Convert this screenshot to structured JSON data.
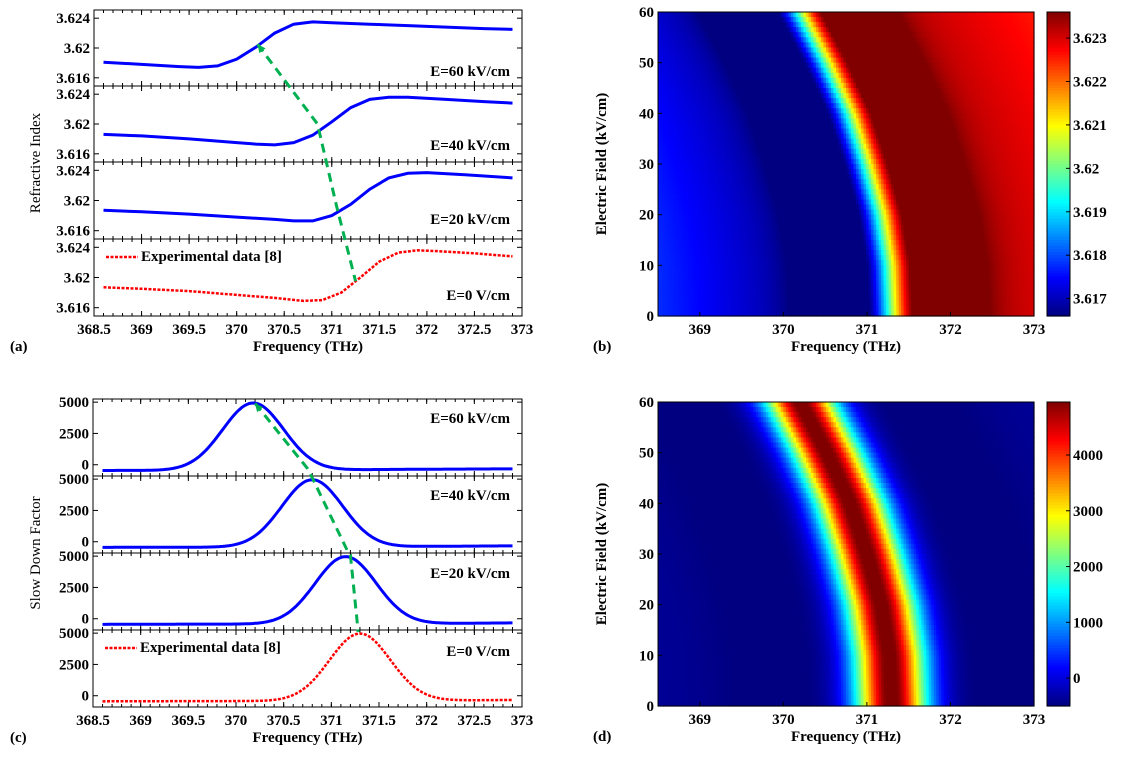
{
  "chart_data": [
    {
      "id": "a",
      "panel_label": "(a)",
      "type": "line",
      "xlabel": "Frequency (THz)",
      "ylabel": "Refractive Index",
      "xlim": [
        368.5,
        373
      ],
      "xticks": [
        "368.5",
        "369",
        "369.5",
        "370",
        "370.5",
        "371",
        "371.5",
        "372",
        "372.5",
        "373"
      ],
      "ylim": [
        3.6149,
        3.6251
      ],
      "yticks": [
        "3.616",
        "3.62",
        "3.624"
      ],
      "legend": {
        "label": "Experimental data [8]",
        "placement": "top-left of bottom subplot"
      },
      "subplots": [
        {
          "annotation": "E=60 kV/cm",
          "field_kV_cm": 60,
          "style": "solid",
          "color": "#0000ff",
          "x": [
            368.6,
            369.0,
            369.4,
            369.6,
            369.8,
            370.0,
            370.2,
            370.4,
            370.6,
            370.8,
            371.0,
            371.4,
            371.8,
            372.2,
            372.6,
            372.9
          ],
          "y": [
            3.6181,
            3.6178,
            3.6175,
            3.6174,
            3.6176,
            3.6185,
            3.6201,
            3.622,
            3.6232,
            3.6235,
            3.6234,
            3.6232,
            3.623,
            3.6228,
            3.6226,
            3.6225
          ]
        },
        {
          "annotation": "E=40 kV/cm",
          "field_kV_cm": 40,
          "style": "solid",
          "color": "#0000ff",
          "x": [
            368.6,
            369.0,
            369.5,
            370.0,
            370.2,
            370.4,
            370.6,
            370.8,
            371.0,
            371.2,
            371.4,
            371.6,
            371.8,
            372.2,
            372.6,
            372.9
          ],
          "y": [
            3.6186,
            3.6184,
            3.618,
            3.6175,
            3.6173,
            3.6172,
            3.6175,
            3.6185,
            3.6203,
            3.6222,
            3.6233,
            3.6236,
            3.6236,
            3.6233,
            3.623,
            3.6228
          ]
        },
        {
          "annotation": "E=20 kV/cm",
          "field_kV_cm": 20,
          "style": "solid",
          "color": "#0000ff",
          "x": [
            368.6,
            369.0,
            369.5,
            370.0,
            370.4,
            370.6,
            370.8,
            371.0,
            371.2,
            371.4,
            371.6,
            371.8,
            372.0,
            372.4,
            372.9
          ],
          "y": [
            3.6187,
            3.6185,
            3.6182,
            3.6178,
            3.6175,
            3.6173,
            3.6173,
            3.618,
            3.6195,
            3.6215,
            3.623,
            3.6236,
            3.6237,
            3.6234,
            3.623
          ]
        },
        {
          "annotation": "E=0 V/cm",
          "field_kV_cm": 0,
          "style": "dotted",
          "color": "#ff0000",
          "legend": true,
          "x": [
            368.6,
            369.0,
            369.5,
            370.0,
            370.4,
            370.7,
            370.9,
            371.1,
            371.3,
            371.5,
            371.7,
            371.9,
            372.1,
            372.5,
            372.9
          ],
          "y": [
            3.6187,
            3.6185,
            3.6182,
            3.6177,
            3.6173,
            3.6169,
            3.617,
            3.618,
            3.62,
            3.6221,
            3.6233,
            3.6236,
            3.6235,
            3.6232,
            3.6228
          ]
        }
      ],
      "trend_line": {
        "style": "dashed",
        "color": "#00b050",
        "points": [
          {
            "subplot": 0,
            "x": 370.22,
            "y": 3.6205
          },
          {
            "subplot": 1,
            "x": 370.85,
            "y": 3.62
          },
          {
            "subplot": 2,
            "x": 371.05,
            "y": 3.6193
          },
          {
            "subplot": 3,
            "x": 371.25,
            "y": 3.6195
          }
        ],
        "arrow_at": "E=60 kV/cm"
      }
    },
    {
      "id": "b",
      "panel_label": "(b)",
      "type": "heatmap",
      "xlabel": "Frequency (THz)",
      "ylabel": "Electric Field (kV/cm)",
      "xlim": [
        368.5,
        373
      ],
      "xticks": [
        "369",
        "370",
        "371",
        "372",
        "373"
      ],
      "ylim": [
        0,
        60
      ],
      "yticks": [
        "0",
        "10",
        "20",
        "30",
        "40",
        "50",
        "60"
      ],
      "colormap": "jet",
      "quantity": "refractive index",
      "clim": [
        3.6166,
        3.6236
      ],
      "colorbar_ticks": [
        "3.617",
        "3.618",
        "3.619",
        "3.62",
        "3.621",
        "3.622",
        "3.623"
      ],
      "resonance_center_THz_by_field": {
        "fields": [
          0,
          10,
          20,
          30,
          40,
          50,
          60
        ],
        "centers": [
          371.3,
          371.27,
          371.17,
          371.0,
          370.8,
          370.52,
          370.2
        ]
      }
    },
    {
      "id": "c",
      "panel_label": "(c)",
      "type": "line",
      "xlabel": "Frequency (THz)",
      "ylabel": "Slow Down Factor",
      "xlim": [
        368.5,
        373
      ],
      "xticks": [
        "368.5",
        "369",
        "369.5",
        "370",
        "370.5",
        "371",
        "371.5",
        "372",
        "372.5",
        "373"
      ],
      "ylim": [
        -900,
        5250
      ],
      "yticks": [
        "0",
        "2500",
        "5000"
      ],
      "legend": {
        "label": "Experimental data [8]",
        "placement": "top-left of bottom subplot"
      },
      "subplots": [
        {
          "annotation": "E=60 kV/cm",
          "field_kV_cm": 60,
          "style": "solid",
          "color": "#0000ff",
          "peak_x": 370.18,
          "peak_y": 4950,
          "width": 0.32,
          "baseline": -450
        },
        {
          "annotation": "E=40 kV/cm",
          "field_kV_cm": 40,
          "style": "solid",
          "color": "#0000ff",
          "peak_x": 370.8,
          "peak_y": 4950,
          "width": 0.32,
          "baseline": -450
        },
        {
          "annotation": "E=20 kV/cm",
          "field_kV_cm": 20,
          "style": "solid",
          "color": "#0000ff",
          "peak_x": 371.15,
          "peak_y": 4950,
          "width": 0.32,
          "baseline": -450
        },
        {
          "annotation": "E=0 V/cm",
          "field_kV_cm": 0,
          "style": "dotted",
          "color": "#ff0000",
          "legend": true,
          "peak_x": 371.3,
          "peak_y": 4950,
          "width": 0.32,
          "baseline": -450
        }
      ],
      "trend_line": {
        "style": "dashed",
        "color": "#00b050",
        "points": [
          {
            "subplot": 0,
            "x": 370.2,
            "y": 4900
          },
          {
            "subplot": 0,
            "x": 370.75,
            "y": -300
          },
          {
            "subplot": 1,
            "x": 370.8,
            "y": 5100
          },
          {
            "subplot": 1,
            "x": 371.18,
            "y": -900
          },
          {
            "subplot": 2,
            "x": 371.2,
            "y": 5100
          },
          {
            "subplot": 2,
            "x": 371.28,
            "y": -900
          },
          {
            "subplot": 3,
            "x": 371.28,
            "y": 5100
          }
        ],
        "arrow_at": "E=60 kV/cm"
      }
    },
    {
      "id": "d",
      "panel_label": "(d)",
      "type": "heatmap",
      "xlabel": "Frequency (THz)",
      "ylabel": "Electric Field (kV/cm)",
      "xlim": [
        368.5,
        373
      ],
      "xticks": [
        "369",
        "370",
        "371",
        "372",
        "373"
      ],
      "ylim": [
        0,
        60
      ],
      "yticks": [
        "0",
        "10",
        "20",
        "30",
        "40",
        "50",
        "60"
      ],
      "colormap": "jet",
      "quantity": "slow down factor",
      "clim": [
        -500,
        4950
      ],
      "colorbar_ticks": [
        "0",
        "1000",
        "2000",
        "3000",
        "4000"
      ],
      "resonance_center_THz_by_field": {
        "fields": [
          0,
          10,
          20,
          30,
          40,
          50,
          60
        ],
        "centers": [
          371.3,
          371.27,
          371.17,
          371.0,
          370.8,
          370.52,
          370.2
        ]
      }
    }
  ]
}
